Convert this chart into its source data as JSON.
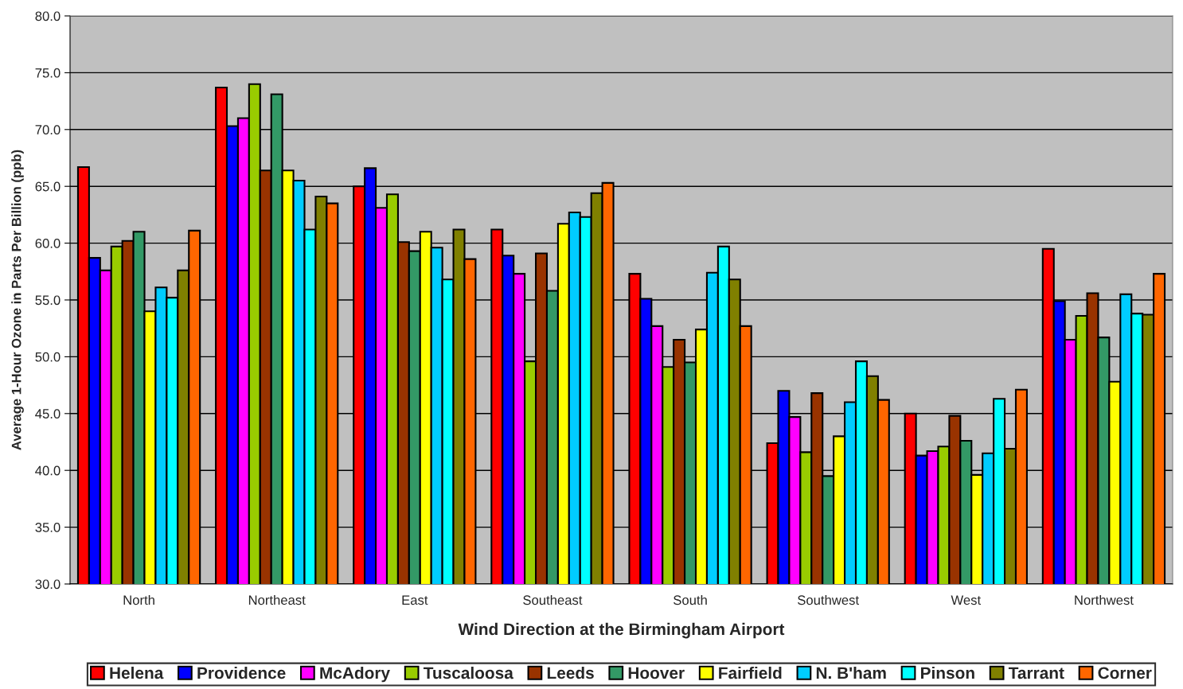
{
  "chart_data": {
    "type": "bar",
    "xlabel": "Wind Direction at the Birmingham Airport",
    "ylabel": "Average 1-Hour Ozone in Parts Per Billion (ppb)",
    "categories": [
      "North",
      "Northeast",
      "East",
      "Southeast",
      "South",
      "Southwest",
      "West",
      "Northwest"
    ],
    "series": [
      {
        "name": "Helena",
        "color": "#ff0000",
        "values": [
          66.7,
          73.7,
          65.0,
          61.2,
          57.3,
          42.4,
          45.0,
          59.5
        ]
      },
      {
        "name": "Providence",
        "color": "#0000ff",
        "values": [
          58.7,
          70.3,
          66.6,
          58.9,
          55.1,
          47.0,
          41.3,
          54.9
        ]
      },
      {
        "name": "McAdory",
        "color": "#ff00ff",
        "values": [
          57.6,
          71.0,
          63.1,
          57.3,
          52.7,
          44.7,
          41.7,
          51.5
        ]
      },
      {
        "name": "Tuscaloosa",
        "color": "#99cc00",
        "values": [
          59.7,
          74.0,
          64.3,
          49.6,
          49.1,
          41.6,
          42.1,
          53.6
        ]
      },
      {
        "name": "Leeds",
        "color": "#993300",
        "values": [
          60.2,
          66.4,
          60.1,
          59.1,
          51.5,
          46.8,
          44.8,
          55.6
        ]
      },
      {
        "name": "Hoover",
        "color": "#339966",
        "values": [
          61.0,
          73.1,
          59.3,
          55.8,
          49.5,
          39.5,
          42.6,
          51.7
        ]
      },
      {
        "name": "Fairfield",
        "color": "#ffff00",
        "values": [
          54.0,
          66.4,
          61.0,
          61.7,
          52.4,
          43.0,
          39.6,
          47.8
        ]
      },
      {
        "name": "N. B'ham",
        "color": "#00ccff",
        "values": [
          56.1,
          65.5,
          59.6,
          62.7,
          57.4,
          46.0,
          41.5,
          55.5
        ]
      },
      {
        "name": "Pinson",
        "color": "#00ffff",
        "values": [
          55.2,
          61.2,
          56.8,
          62.3,
          59.7,
          49.6,
          46.3,
          53.8
        ]
      },
      {
        "name": "Tarrant",
        "color": "#808000",
        "values": [
          57.6,
          64.1,
          61.2,
          64.4,
          56.8,
          48.3,
          41.9,
          53.7
        ]
      },
      {
        "name": "Corner",
        "color": "#ff6600",
        "values": [
          61.1,
          63.5,
          58.6,
          65.3,
          52.7,
          46.2,
          47.1,
          57.3
        ]
      }
    ],
    "ylim": [
      30,
      80
    ],
    "yticks": [
      {
        "value": 30,
        "label": "30.0"
      },
      {
        "value": 35,
        "label": "35.0"
      },
      {
        "value": 40,
        "label": "40.0"
      },
      {
        "value": 45,
        "label": "45.0"
      },
      {
        "value": 50,
        "label": "50.0"
      },
      {
        "value": 55,
        "label": "55.0"
      },
      {
        "value": 60,
        "label": "60.0"
      },
      {
        "value": 65,
        "label": "65.0"
      },
      {
        "value": 70,
        "label": "70.0"
      },
      {
        "value": 75,
        "label": "75.0"
      },
      {
        "value": 80,
        "label": "80.0"
      }
    ],
    "grid": "y",
    "legend": "bottom"
  }
}
